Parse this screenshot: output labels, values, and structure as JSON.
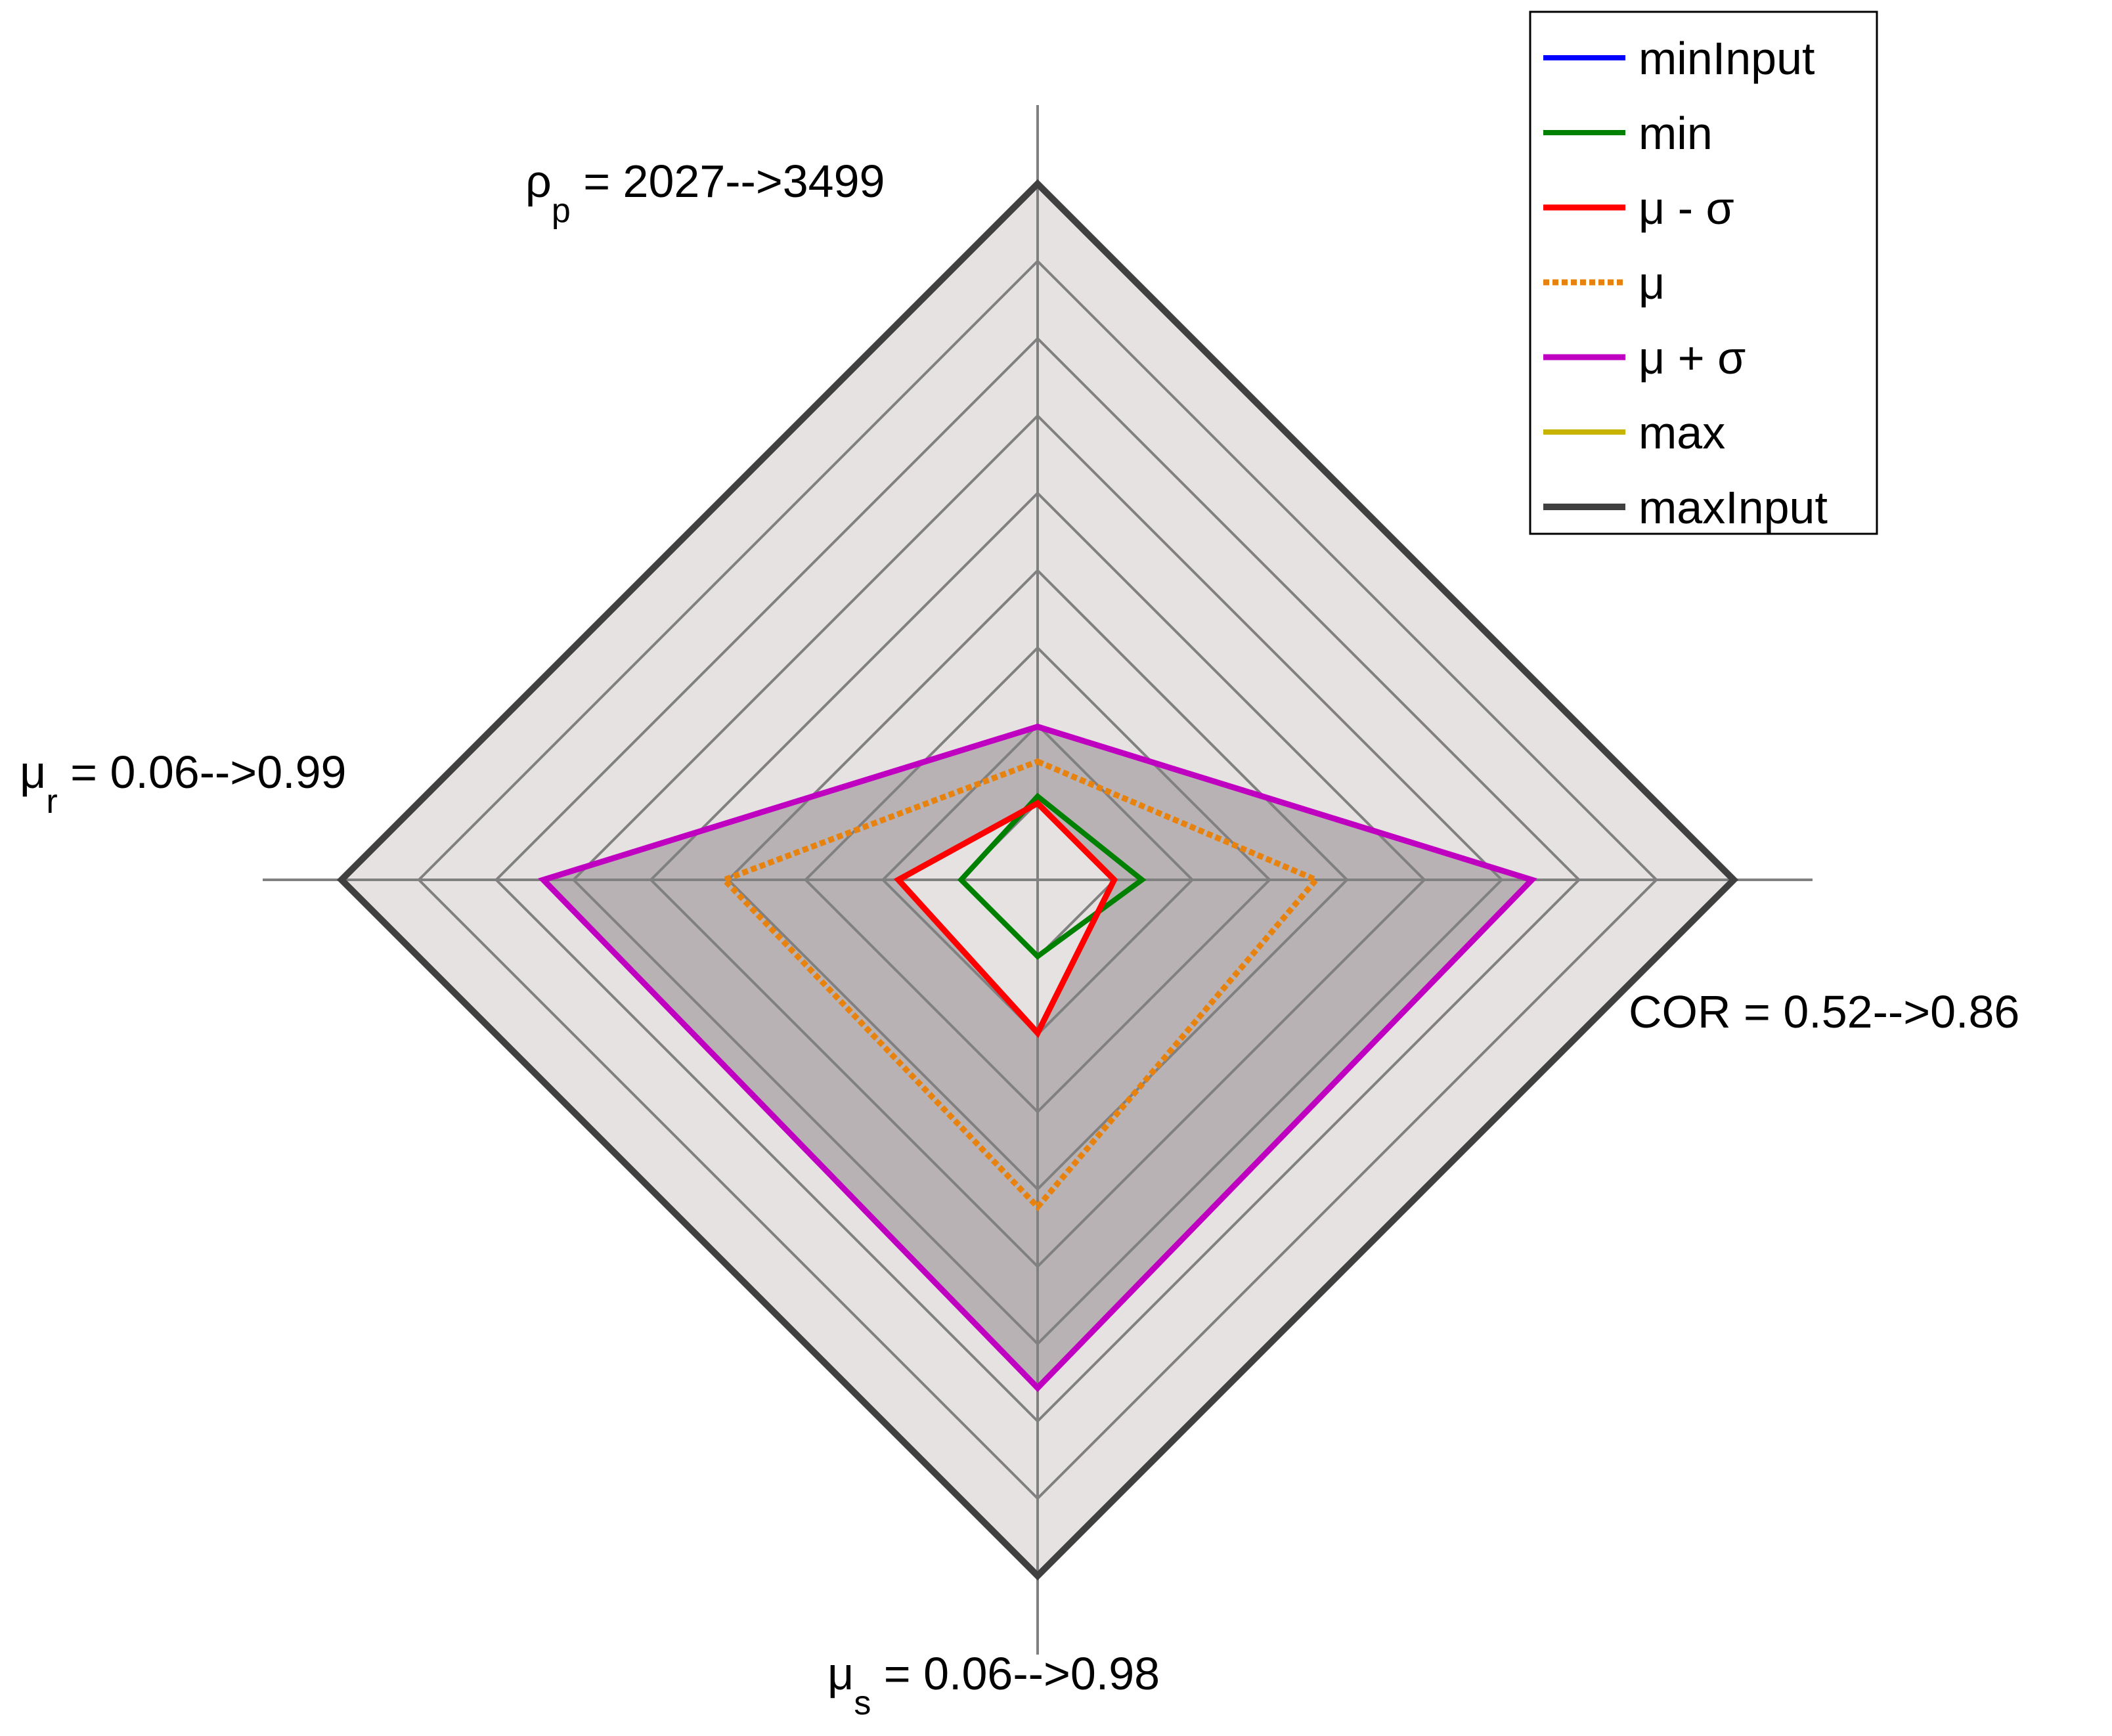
{
  "chart_data": {
    "type": "radar",
    "axes": [
      {
        "key": "rho_p",
        "symbol": "ρ",
        "subscript": "p",
        "label": " = 2027-->3499",
        "min": 2027,
        "max": 3499,
        "direction": "up"
      },
      {
        "key": "cor",
        "symbol": "",
        "subscript": "",
        "label": "COR = 0.52-->0.86",
        "min": 0.52,
        "max": 0.86,
        "direction": "right"
      },
      {
        "key": "mu_s",
        "symbol": "μ",
        "subscript": "s",
        "label": " = 0.06-->0.98",
        "min": 0.06,
        "max": 0.98,
        "direction": "down"
      },
      {
        "key": "mu_r",
        "symbol": "μ",
        "subscript": "r",
        "label": " = 0.06-->0.99",
        "min": 0.06,
        "max": 0.99,
        "direction": "left"
      }
    ],
    "rings": 9,
    "grid": true,
    "series": [
      {
        "name": "minInput",
        "color": "#0000ff",
        "dash": "solid",
        "width": 8,
        "values": [
          0,
          0,
          0,
          0
        ]
      },
      {
        "name": "min",
        "color": "#008000",
        "dash": "solid",
        "width": 8,
        "values": [
          0.12,
          0.15,
          0.11,
          0.11
        ]
      },
      {
        "name": "μ - σ",
        "color": "#ff0000",
        "dash": "solid",
        "width": 9,
        "values": [
          0.11,
          0.11,
          0.22,
          0.2
        ]
      },
      {
        "name": "μ",
        "color": "#e8820e",
        "dash": "dotted",
        "width": 9,
        "values": [
          0.17,
          0.4,
          0.47,
          0.45
        ]
      },
      {
        "name": "μ + σ",
        "color": "#c000c0",
        "dash": "solid",
        "width": 9,
        "values": [
          0.22,
          0.71,
          0.73,
          0.71
        ]
      },
      {
        "name": "max",
        "color": "#c8b400",
        "dash": "solid",
        "width": 8,
        "values": [
          1,
          1,
          1,
          1
        ]
      },
      {
        "name": "maxInput",
        "color": "#404040",
        "dash": "solid",
        "width": 10,
        "values": [
          1,
          1,
          1,
          1
        ]
      }
    ],
    "legend_position": "top-right"
  }
}
